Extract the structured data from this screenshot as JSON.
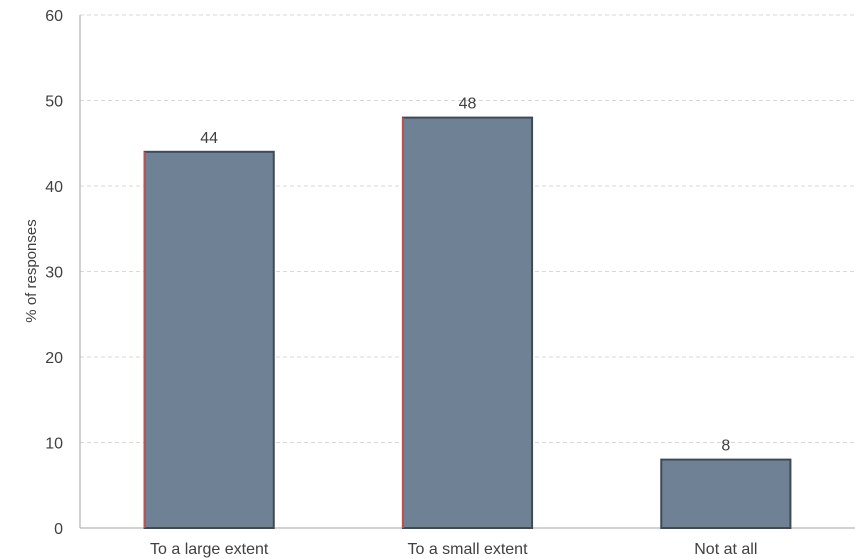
{
  "chart_data": {
    "type": "bar",
    "title": "",
    "xlabel": "",
    "ylabel": "% of responses",
    "categories": [
      "To a large extent",
      "To a small extent",
      "Not at all"
    ],
    "values": [
      44,
      48,
      8
    ],
    "data_labels": [
      "44",
      "48",
      "8"
    ],
    "ylim": [
      0,
      60
    ],
    "yticks": [
      0,
      10,
      20,
      30,
      40,
      50,
      60
    ],
    "grid": true,
    "legend": "none",
    "colors": {
      "bar_fill": "#6E8195",
      "bar_stroke": "#3F4A57",
      "bar_left_edge": "#C0504D",
      "gridline": "#D9D9D9",
      "axis": "#A6A6A6",
      "text": "#404040"
    }
  }
}
